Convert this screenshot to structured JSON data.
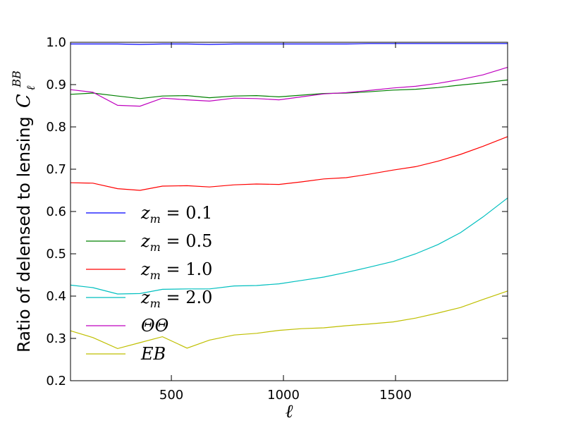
{
  "chart_data": {
    "type": "line",
    "xlabel": "ℓ",
    "ylabel_text": "Ratio of delensed to lensing",
    "ylabel_symbol": "C",
    "ylabel_sub": "ℓ",
    "ylabel_sup": "BB",
    "xlim": [
      50,
      2000
    ],
    "ylim": [
      0.2,
      1.0
    ],
    "x_ticks": [
      500,
      1000,
      1500
    ],
    "y_ticks": [
      0.2,
      0.3,
      0.4,
      0.5,
      0.6,
      0.7,
      0.8,
      0.9,
      1.0
    ],
    "x_tick_labels": [
      "500",
      "1000",
      "1500"
    ],
    "y_tick_labels": [
      "0.2",
      "0.3",
      "0.4",
      "0.5",
      "0.6",
      "0.7",
      "0.8",
      "0.9",
      "1.0"
    ],
    "grid": false,
    "legend_position": "left",
    "x": [
      50,
      150,
      260,
      360,
      460,
      570,
      670,
      780,
      880,
      980,
      1080,
      1180,
      1280,
      1380,
      1490,
      1590,
      1690,
      1790,
      1890,
      2000
    ],
    "series": [
      {
        "name": "z_m = 0.1",
        "color": "#0000ff",
        "values": [
          0.996,
          0.996,
          0.996,
          0.995,
          0.996,
          0.996,
          0.995,
          0.996,
          0.996,
          0.996,
          0.996,
          0.996,
          0.996,
          0.997,
          0.997,
          0.997,
          0.997,
          0.997,
          0.997,
          0.997
        ]
      },
      {
        "name": "z_m = 0.5",
        "color": "#008000",
        "values": [
          0.877,
          0.88,
          0.873,
          0.867,
          0.873,
          0.874,
          0.869,
          0.873,
          0.874,
          0.871,
          0.875,
          0.879,
          0.88,
          0.883,
          0.887,
          0.889,
          0.893,
          0.899,
          0.904,
          0.911
        ]
      },
      {
        "name": "z_m = 1.0",
        "color": "#ff0000",
        "values": [
          0.668,
          0.667,
          0.654,
          0.65,
          0.66,
          0.661,
          0.658,
          0.663,
          0.665,
          0.664,
          0.67,
          0.677,
          0.68,
          0.688,
          0.698,
          0.706,
          0.719,
          0.735,
          0.754,
          0.777
        ]
      },
      {
        "name": "z_m = 2.0",
        "color": "#00bfbf",
        "values": [
          0.426,
          0.42,
          0.405,
          0.406,
          0.416,
          0.417,
          0.417,
          0.424,
          0.425,
          0.429,
          0.437,
          0.445,
          0.456,
          0.468,
          0.482,
          0.5,
          0.522,
          0.55,
          0.587,
          0.632
        ]
      },
      {
        "name": "ΘΘ",
        "color": "#bf00bf",
        "values": [
          0.888,
          0.882,
          0.851,
          0.849,
          0.868,
          0.864,
          0.861,
          0.868,
          0.867,
          0.864,
          0.871,
          0.878,
          0.881,
          0.886,
          0.892,
          0.896,
          0.903,
          0.912,
          0.923,
          0.941
        ]
      },
      {
        "name": "EB",
        "color": "#bfbf00",
        "values": [
          0.318,
          0.302,
          0.276,
          0.29,
          0.304,
          0.277,
          0.296,
          0.308,
          0.312,
          0.319,
          0.323,
          0.325,
          0.33,
          0.334,
          0.339,
          0.348,
          0.36,
          0.373,
          0.392,
          0.412
        ]
      }
    ],
    "legend": [
      {
        "base": "z",
        "sub": "m",
        "rest": " = 0.1"
      },
      {
        "base": "z",
        "sub": "m",
        "rest": " = 0.5"
      },
      {
        "base": "z",
        "sub": "m",
        "rest": " = 1.0"
      },
      {
        "base": "z",
        "sub": "m",
        "rest": " = 2.0"
      },
      {
        "base": "ΘΘ",
        "sub": "",
        "rest": ""
      },
      {
        "base": "EB",
        "sub": "",
        "rest": ""
      }
    ]
  }
}
